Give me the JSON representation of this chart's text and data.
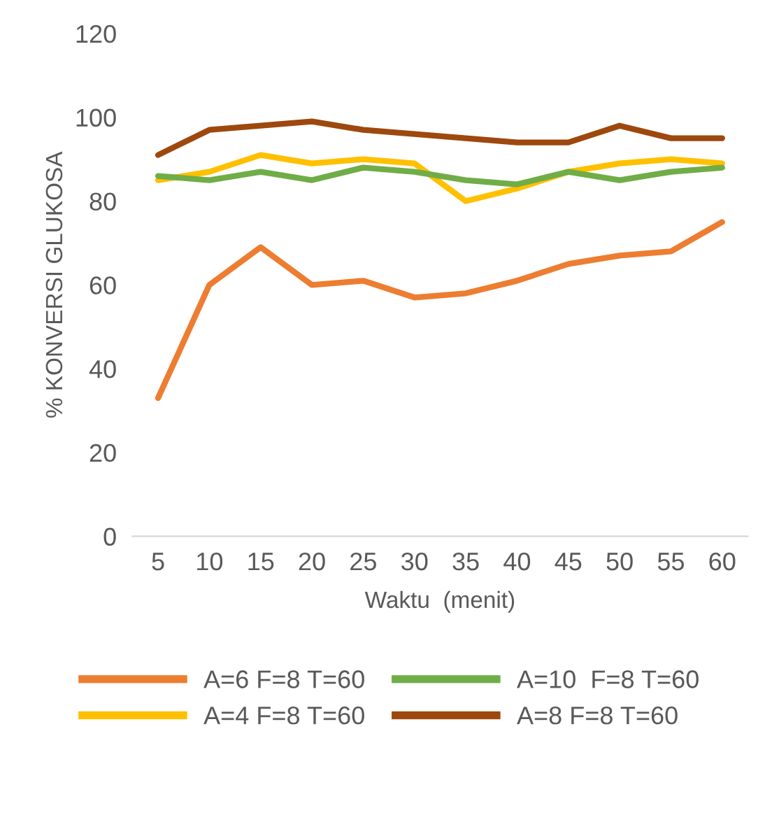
{
  "chart_data": {
    "type": "line",
    "xlabel": "Waktu  (menit)",
    "ylabel": "% KONVERSI GLUKOSA",
    "categories": [
      "5",
      "10",
      "15",
      "20",
      "25",
      "30",
      "35",
      "40",
      "45",
      "50",
      "55",
      "60"
    ],
    "series": [
      {
        "name": "A=6 F=8 T=60",
        "color": "#ed7d31",
        "values": [
          33,
          60,
          69,
          60,
          61,
          57,
          58,
          61,
          65,
          67,
          68,
          75
        ]
      },
      {
        "name": "A=4 F=8 T=60",
        "color": "#ffc000",
        "values": [
          85,
          87,
          91,
          89,
          90,
          89,
          80,
          83,
          87,
          89,
          90,
          89
        ]
      },
      {
        "name": "A=10  F=8 T=60",
        "color": "#70ad47",
        "values": [
          86,
          85,
          87,
          85,
          88,
          87,
          85,
          84,
          87,
          85,
          87,
          88
        ]
      },
      {
        "name": "A=8 F=8 T=60",
        "color": "#9e480e",
        "values": [
          91,
          97,
          98,
          99,
          97,
          96,
          95,
          94,
          94,
          98,
          95,
          95
        ]
      }
    ],
    "ylim": [
      0,
      120
    ],
    "yticks": [
      0,
      20,
      40,
      60,
      80,
      100,
      120
    ],
    "grid": false,
    "legend": "bottom",
    "marker": "none",
    "line_style": "solid"
  }
}
